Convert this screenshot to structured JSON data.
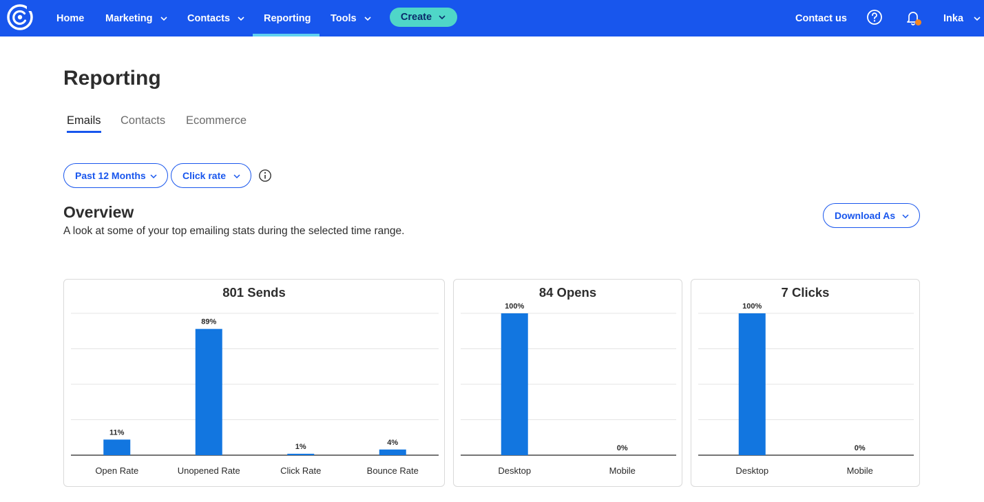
{
  "nav": {
    "items": [
      {
        "label": "Home"
      },
      {
        "label": "Marketing"
      },
      {
        "label": "Contacts"
      },
      {
        "label": "Reporting"
      },
      {
        "label": "Tools"
      }
    ],
    "create_label": "Create",
    "contact_label": "Contact us",
    "user_label": "Inka",
    "active": "Reporting"
  },
  "page": {
    "title": "Reporting",
    "tabs": [
      {
        "label": "Emails",
        "active": true
      },
      {
        "label": "Contacts",
        "active": false
      },
      {
        "label": "Ecommerce",
        "active": false
      }
    ]
  },
  "filters": {
    "range_label": "Past 12 Months",
    "metric_label": "Click rate"
  },
  "overview": {
    "title": "Overview",
    "subtitle": "A look at some of your top emailing stats during the selected time range.",
    "download_label": "Download As"
  },
  "colors": {
    "nav_bg": "#1856ed",
    "bar": "#1276e0",
    "create_bg": "#4fd6c8",
    "notification": "#f5871f"
  },
  "chart_data": [
    {
      "type": "bar",
      "title": "801 Sends",
      "categories": [
        "Open Rate",
        "Unopened Rate",
        "Click Rate",
        "Bounce Rate"
      ],
      "values": [
        11,
        89,
        1,
        4
      ],
      "data_labels": [
        "11%",
        "89%",
        "1%",
        "4%"
      ],
      "ylim": [
        0,
        100
      ],
      "grid": true
    },
    {
      "type": "bar",
      "title": "84 Opens",
      "categories": [
        "Desktop",
        "Mobile"
      ],
      "values": [
        100,
        0
      ],
      "data_labels": [
        "100%",
        "0%"
      ],
      "ylim": [
        0,
        100
      ],
      "grid": true
    },
    {
      "type": "bar",
      "title": "7 Clicks",
      "categories": [
        "Desktop",
        "Mobile"
      ],
      "values": [
        100,
        0
      ],
      "data_labels": [
        "100%",
        "0%"
      ],
      "ylim": [
        0,
        100
      ],
      "grid": true
    }
  ]
}
